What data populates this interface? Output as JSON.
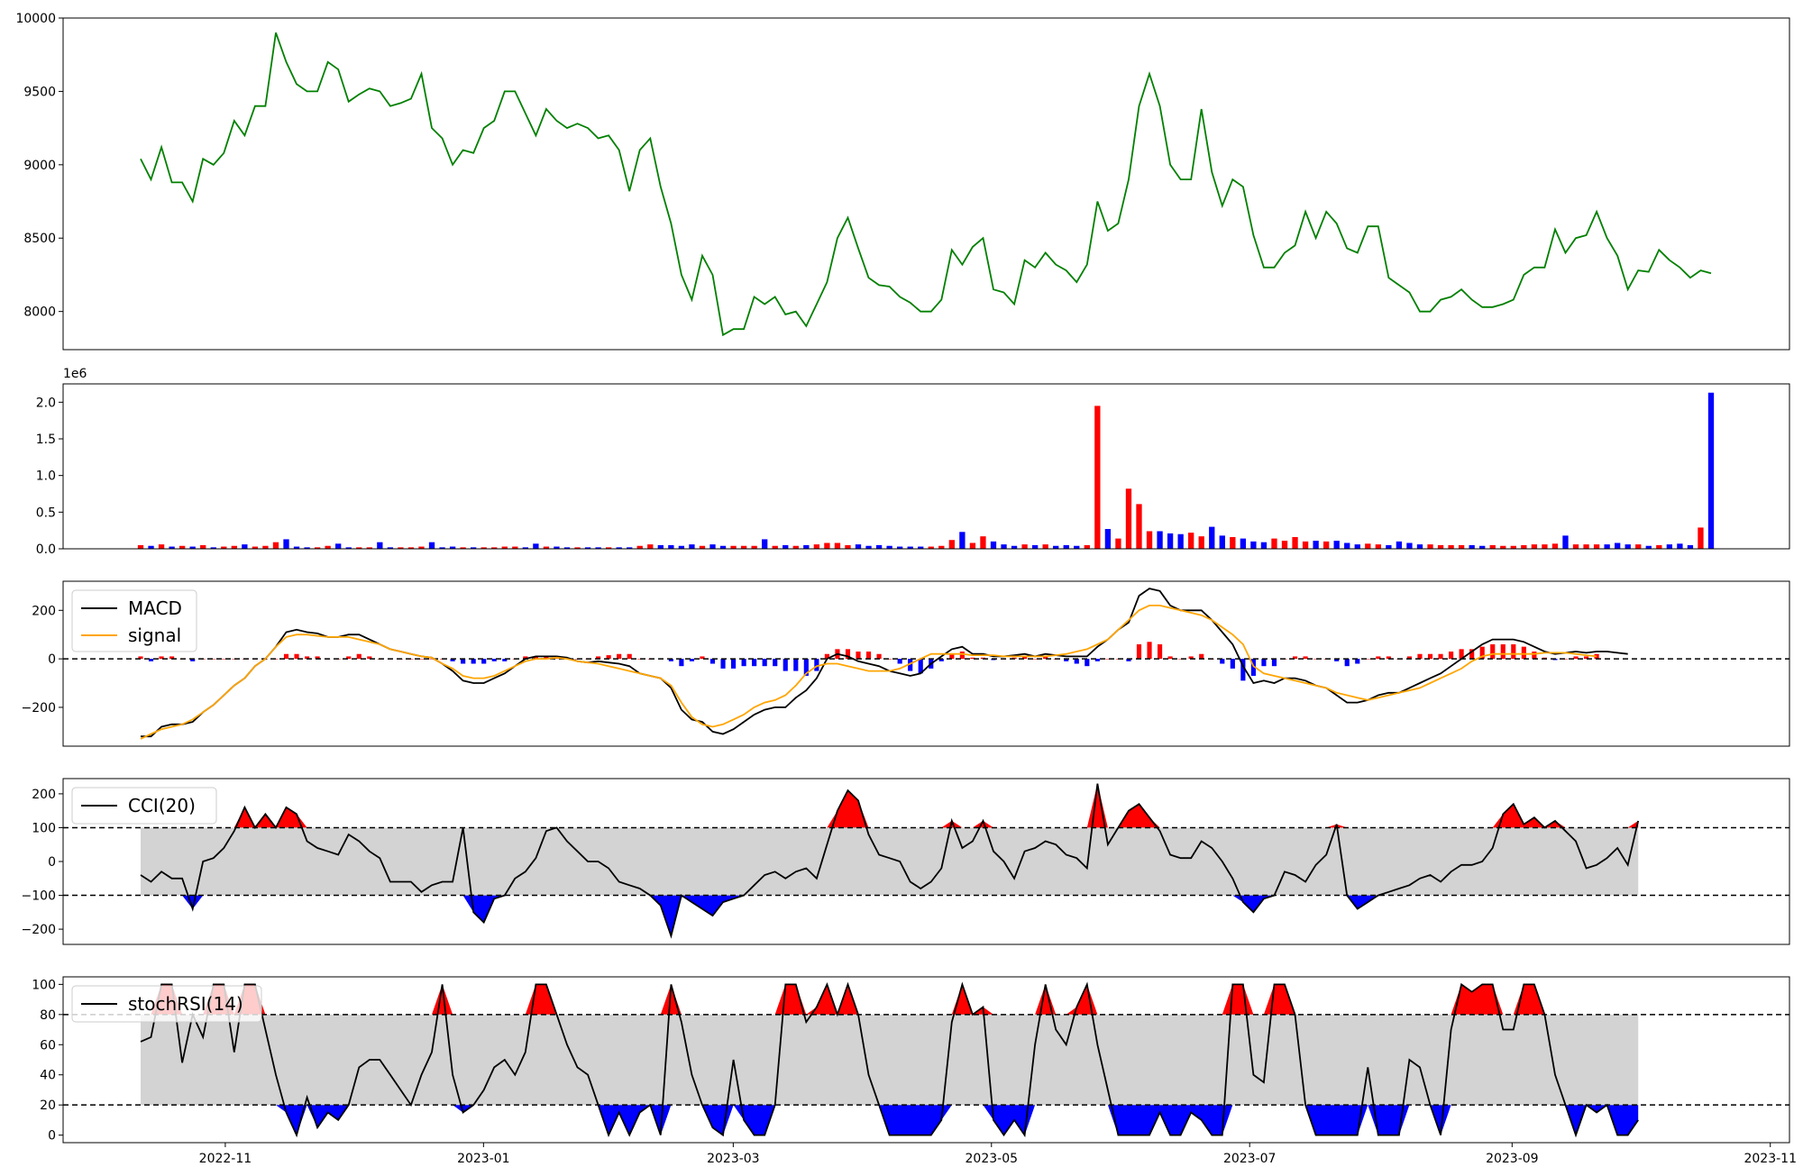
{
  "colors": {
    "price_line": "#008000",
    "volume_up": "#ff0000",
    "volume_down": "#0000ff",
    "macd_line": "#000000",
    "signal_line": "#ffa500",
    "band_fill": "#d3d3d3",
    "over_fill": "#ff0000",
    "under_fill": "#0000ff"
  },
  "x_axis": {
    "ticks": [
      "2022-11",
      "2023-01",
      "2023-03",
      "2023-05",
      "2023-07",
      "2023-09",
      "2023-11"
    ]
  },
  "chart_data": [
    {
      "type": "line",
      "panel": "price",
      "ylim": [
        7740,
        10000
      ],
      "yticks": [
        "8000",
        "8500",
        "9000",
        "9500",
        "10000"
      ],
      "x_start": "2022-10-12",
      "x_end": "2023-10-18",
      "series": [
        {
          "values": [
            9040,
            8900,
            9120,
            8880,
            8880,
            8750,
            9040,
            9000,
            9080,
            9300,
            9200,
            9400,
            9400,
            9900,
            9700,
            9550,
            9500,
            9500,
            9700,
            9650,
            9430,
            9480,
            9520,
            9500,
            9400,
            9420,
            9450,
            9620,
            9250,
            9180,
            9000,
            9100,
            9080,
            9250,
            9300,
            9500,
            9500,
            9350,
            9200,
            9380,
            9300,
            9250,
            9280,
            9250,
            9180,
            9200,
            9100,
            8820,
            9100,
            9180,
            8850,
            8600,
            8250,
            8080,
            8380,
            8250,
            7840,
            7880,
            7880,
            8100,
            8050,
            8100,
            7980,
            8000,
            7900,
            8050,
            8200,
            8500,
            8640,
            8430,
            8230,
            8180,
            8170,
            8100,
            8060,
            8000,
            8000,
            8080,
            8420,
            8320,
            8440,
            8500,
            8150,
            8130,
            8050,
            8350,
            8300,
            8400,
            8320,
            8280,
            8200,
            8320,
            8750,
            8550,
            8600,
            8900,
            9400,
            9620,
            9400,
            9000,
            8900,
            8900,
            9380,
            8950,
            8720,
            8900,
            8850,
            8520,
            8300,
            8300,
            8400,
            8450,
            8680,
            8500,
            8680,
            8600,
            8430,
            8400,
            8580,
            8580,
            8230,
            8180,
            8130,
            8000,
            8000,
            8080,
            8100,
            8150,
            8080,
            8030,
            8030,
            8050,
            8080,
            8250,
            8300,
            8300,
            8560,
            8400,
            8500,
            8520,
            8680,
            8500,
            8380,
            8150,
            8280,
            8270,
            8420,
            8350,
            8300,
            8230,
            8280,
            8260
          ]
        }
      ]
    },
    {
      "type": "bar",
      "panel": "volume",
      "ylim": [
        0,
        2250000
      ],
      "yticks": [
        "0.0",
        "0.5",
        "1.0",
        "1.5",
        "2.0"
      ],
      "scale_label": "1e6",
      "series": [
        {
          "name": "",
          "values": [
            50000,
            40000,
            60000,
            30000,
            40000,
            30000,
            50000,
            20000,
            30000,
            40000,
            60000,
            30000,
            40000,
            90000,
            130000,
            30000,
            20000,
            20000,
            40000,
            70000,
            20000,
            20000,
            20000,
            90000,
            20000,
            20000,
            20000,
            30000,
            90000,
            20000,
            30000,
            20000,
            20000,
            20000,
            20000,
            30000,
            30000,
            20000,
            70000,
            30000,
            30000,
            20000,
            20000,
            20000,
            20000,
            20000,
            20000,
            20000,
            40000,
            60000,
            50000,
            50000,
            40000,
            60000,
            40000,
            60000,
            40000,
            40000,
            40000,
            40000,
            130000,
            40000,
            50000,
            40000,
            50000,
            60000,
            80000,
            80000,
            50000,
            60000,
            40000,
            50000,
            40000,
            30000,
            30000,
            30000,
            30000,
            40000,
            120000,
            230000,
            80000,
            170000,
            100000,
            60000,
            40000,
            60000,
            50000,
            60000,
            40000,
            50000,
            40000,
            50000,
            1950000,
            270000,
            140000,
            820000,
            610000,
            240000,
            240000,
            210000,
            200000,
            220000,
            170000,
            300000,
            180000,
            160000,
            140000,
            100000,
            90000,
            140000,
            110000,
            160000,
            100000,
            110000,
            100000,
            110000,
            80000,
            60000,
            70000,
            60000,
            50000,
            100000,
            80000,
            60000,
            60000,
            50000,
            50000,
            50000,
            50000,
            40000,
            50000,
            40000,
            40000,
            50000,
            60000,
            60000,
            70000,
            180000,
            60000,
            60000,
            60000,
            60000,
            80000,
            60000,
            60000,
            40000,
            50000,
            60000,
            70000,
            50000,
            290000,
            2130000
          ]
        }
      ]
    },
    {
      "type": "line",
      "panel": "macd",
      "ylim": [
        -360,
        320
      ],
      "yticks": [
        "−200",
        "0",
        "200"
      ],
      "legend": [
        "MACD",
        "signal"
      ],
      "series": [
        {
          "name": "MACD",
          "values": [
            -320,
            -320,
            -280,
            -270,
            -270,
            -260,
            -220,
            -190,
            -150,
            -110,
            -80,
            -30,
            0,
            50,
            110,
            120,
            110,
            105,
            90,
            90,
            100,
            100,
            80,
            60,
            40,
            30,
            20,
            10,
            5,
            -20,
            -50,
            -90,
            -100,
            -100,
            -80,
            -60,
            -30,
            0,
            10,
            10,
            10,
            5,
            -10,
            -15,
            -10,
            -15,
            -20,
            -30,
            -60,
            -70,
            -80,
            -120,
            -210,
            -250,
            -260,
            -300,
            -310,
            -290,
            -260,
            -230,
            -210,
            -200,
            -200,
            -160,
            -130,
            -80,
            0,
            20,
            10,
            -10,
            -20,
            -30,
            -50,
            -60,
            -70,
            -60,
            -20,
            10,
            40,
            50,
            20,
            20,
            10,
            10,
            15,
            20,
            10,
            20,
            15,
            10,
            10,
            10,
            50,
            80,
            120,
            150,
            260,
            290,
            280,
            220,
            200,
            200,
            200,
            160,
            110,
            60,
            -30,
            -100,
            -90,
            -100,
            -80,
            -80,
            -90,
            -110,
            -120,
            -150,
            -180,
            -180,
            -170,
            -150,
            -140,
            -140,
            -120,
            -100,
            -80,
            -60,
            -30,
            0,
            30,
            60,
            80,
            80,
            80,
            70,
            50,
            30,
            20,
            25,
            30,
            25,
            30,
            30,
            25,
            20
          ]
        },
        {
          "name": "signal",
          "values": [
            -330,
            -310,
            -290,
            -280,
            -270,
            -250,
            -220,
            -190,
            -150,
            -110,
            -80,
            -30,
            0,
            50,
            90,
            100,
            100,
            95,
            90,
            90,
            90,
            80,
            70,
            60,
            40,
            30,
            20,
            10,
            5,
            -20,
            -40,
            -70,
            -80,
            -80,
            -70,
            -50,
            -30,
            -10,
            0,
            0,
            5,
            0,
            -10,
            -15,
            -20,
            -30,
            -40,
            -50,
            -60,
            -70,
            -80,
            -110,
            -180,
            -240,
            -270,
            -280,
            -270,
            -250,
            -230,
            -200,
            -180,
            -170,
            -150,
            -110,
            -60,
            -30,
            -20,
            -20,
            -30,
            -40,
            -50,
            -50,
            -50,
            -40,
            -20,
            0,
            20,
            20,
            20,
            20,
            15,
            15,
            15,
            10,
            10,
            10,
            10,
            10,
            15,
            20,
            30,
            40,
            60,
            80,
            120,
            160,
            200,
            220,
            220,
            210,
            200,
            190,
            180,
            160,
            130,
            100,
            60,
            -30,
            -60,
            -70,
            -80,
            -90,
            -100,
            -110,
            -120,
            -140,
            -150,
            -160,
            -170,
            -160,
            -150,
            -140,
            -130,
            -120,
            -100,
            -80,
            -60,
            -40,
            -10,
            10,
            20,
            20,
            20,
            20,
            20,
            25,
            25,
            25,
            20,
            15,
            10
          ]
        }
      ]
    },
    {
      "type": "line",
      "panel": "cci",
      "ylim": [
        -245,
        245
      ],
      "yticks": [
        "−200",
        "−100",
        "0",
        "100",
        "200"
      ],
      "thresholds": [
        100,
        -100
      ],
      "legend": [
        "CCI(20)"
      ],
      "series": [
        {
          "name": "CCI(20)",
          "values": [
            -40,
            -60,
            -30,
            -50,
            -50,
            -140,
            0,
            10,
            40,
            90,
            160,
            100,
            140,
            100,
            160,
            140,
            60,
            40,
            30,
            20,
            80,
            60,
            30,
            10,
            -60,
            -60,
            -60,
            -90,
            -70,
            -60,
            -60,
            100,
            -150,
            -180,
            -110,
            -100,
            -50,
            -30,
            10,
            90,
            100,
            60,
            30,
            0,
            0,
            -20,
            -60,
            -70,
            -80,
            -100,
            -130,
            -220,
            -100,
            -120,
            -140,
            -160,
            -120,
            -110,
            -100,
            -70,
            -40,
            -30,
            -50,
            -30,
            -20,
            -50,
            50,
            150,
            210,
            180,
            80,
            20,
            10,
            0,
            -60,
            -80,
            -60,
            -20,
            120,
            40,
            60,
            120,
            30,
            0,
            -50,
            30,
            40,
            60,
            50,
            20,
            10,
            -20,
            230,
            50,
            100,
            150,
            170,
            130,
            90,
            20,
            10,
            10,
            60,
            40,
            0,
            -50,
            -120,
            -150,
            -110,
            -100,
            -30,
            -40,
            -60,
            -10,
            20,
            110,
            -100,
            -140,
            -120,
            -100,
            -90,
            -80,
            -70,
            -50,
            -40,
            -60,
            -30,
            -10,
            -10,
            0,
            40,
            140,
            170,
            110,
            130,
            100,
            120,
            90,
            60,
            -20,
            -10,
            10,
            40,
            -10,
            120
          ]
        }
      ]
    },
    {
      "type": "line",
      "panel": "stochrsi",
      "ylim": [
        -5,
        105
      ],
      "yticks": [
        "0",
        "20",
        "40",
        "60",
        "80",
        "100"
      ],
      "thresholds": [
        80,
        20
      ],
      "legend": [
        "stochRSI(14)"
      ],
      "series": [
        {
          "name": "stochRSI(14)",
          "values": [
            62,
            65,
            100,
            100,
            48,
            80,
            65,
            100,
            100,
            55,
            100,
            100,
            70,
            40,
            15,
            0,
            25,
            5,
            15,
            10,
            20,
            45,
            50,
            50,
            40,
            30,
            20,
            40,
            55,
            100,
            40,
            15,
            20,
            30,
            45,
            50,
            40,
            55,
            100,
            100,
            80,
            60,
            45,
            40,
            20,
            0,
            15,
            0,
            15,
            20,
            0,
            100,
            75,
            40,
            20,
            5,
            0,
            50,
            10,
            0,
            0,
            20,
            100,
            100,
            75,
            85,
            100,
            80,
            100,
            80,
            40,
            20,
            0,
            0,
            0,
            0,
            0,
            10,
            75,
            100,
            80,
            85,
            10,
            0,
            10,
            0,
            60,
            100,
            70,
            60,
            85,
            100,
            60,
            30,
            0,
            0,
            0,
            0,
            15,
            0,
            0,
            15,
            10,
            0,
            0,
            100,
            100,
            40,
            35,
            100,
            100,
            80,
            20,
            0,
            0,
            0,
            0,
            0,
            45,
            0,
            0,
            0,
            50,
            45,
            20,
            0,
            70,
            100,
            95,
            100,
            100,
            70,
            70,
            100,
            100,
            80,
            40,
            20,
            0,
            20,
            15,
            20,
            0,
            0,
            10
          ]
        }
      ]
    }
  ]
}
